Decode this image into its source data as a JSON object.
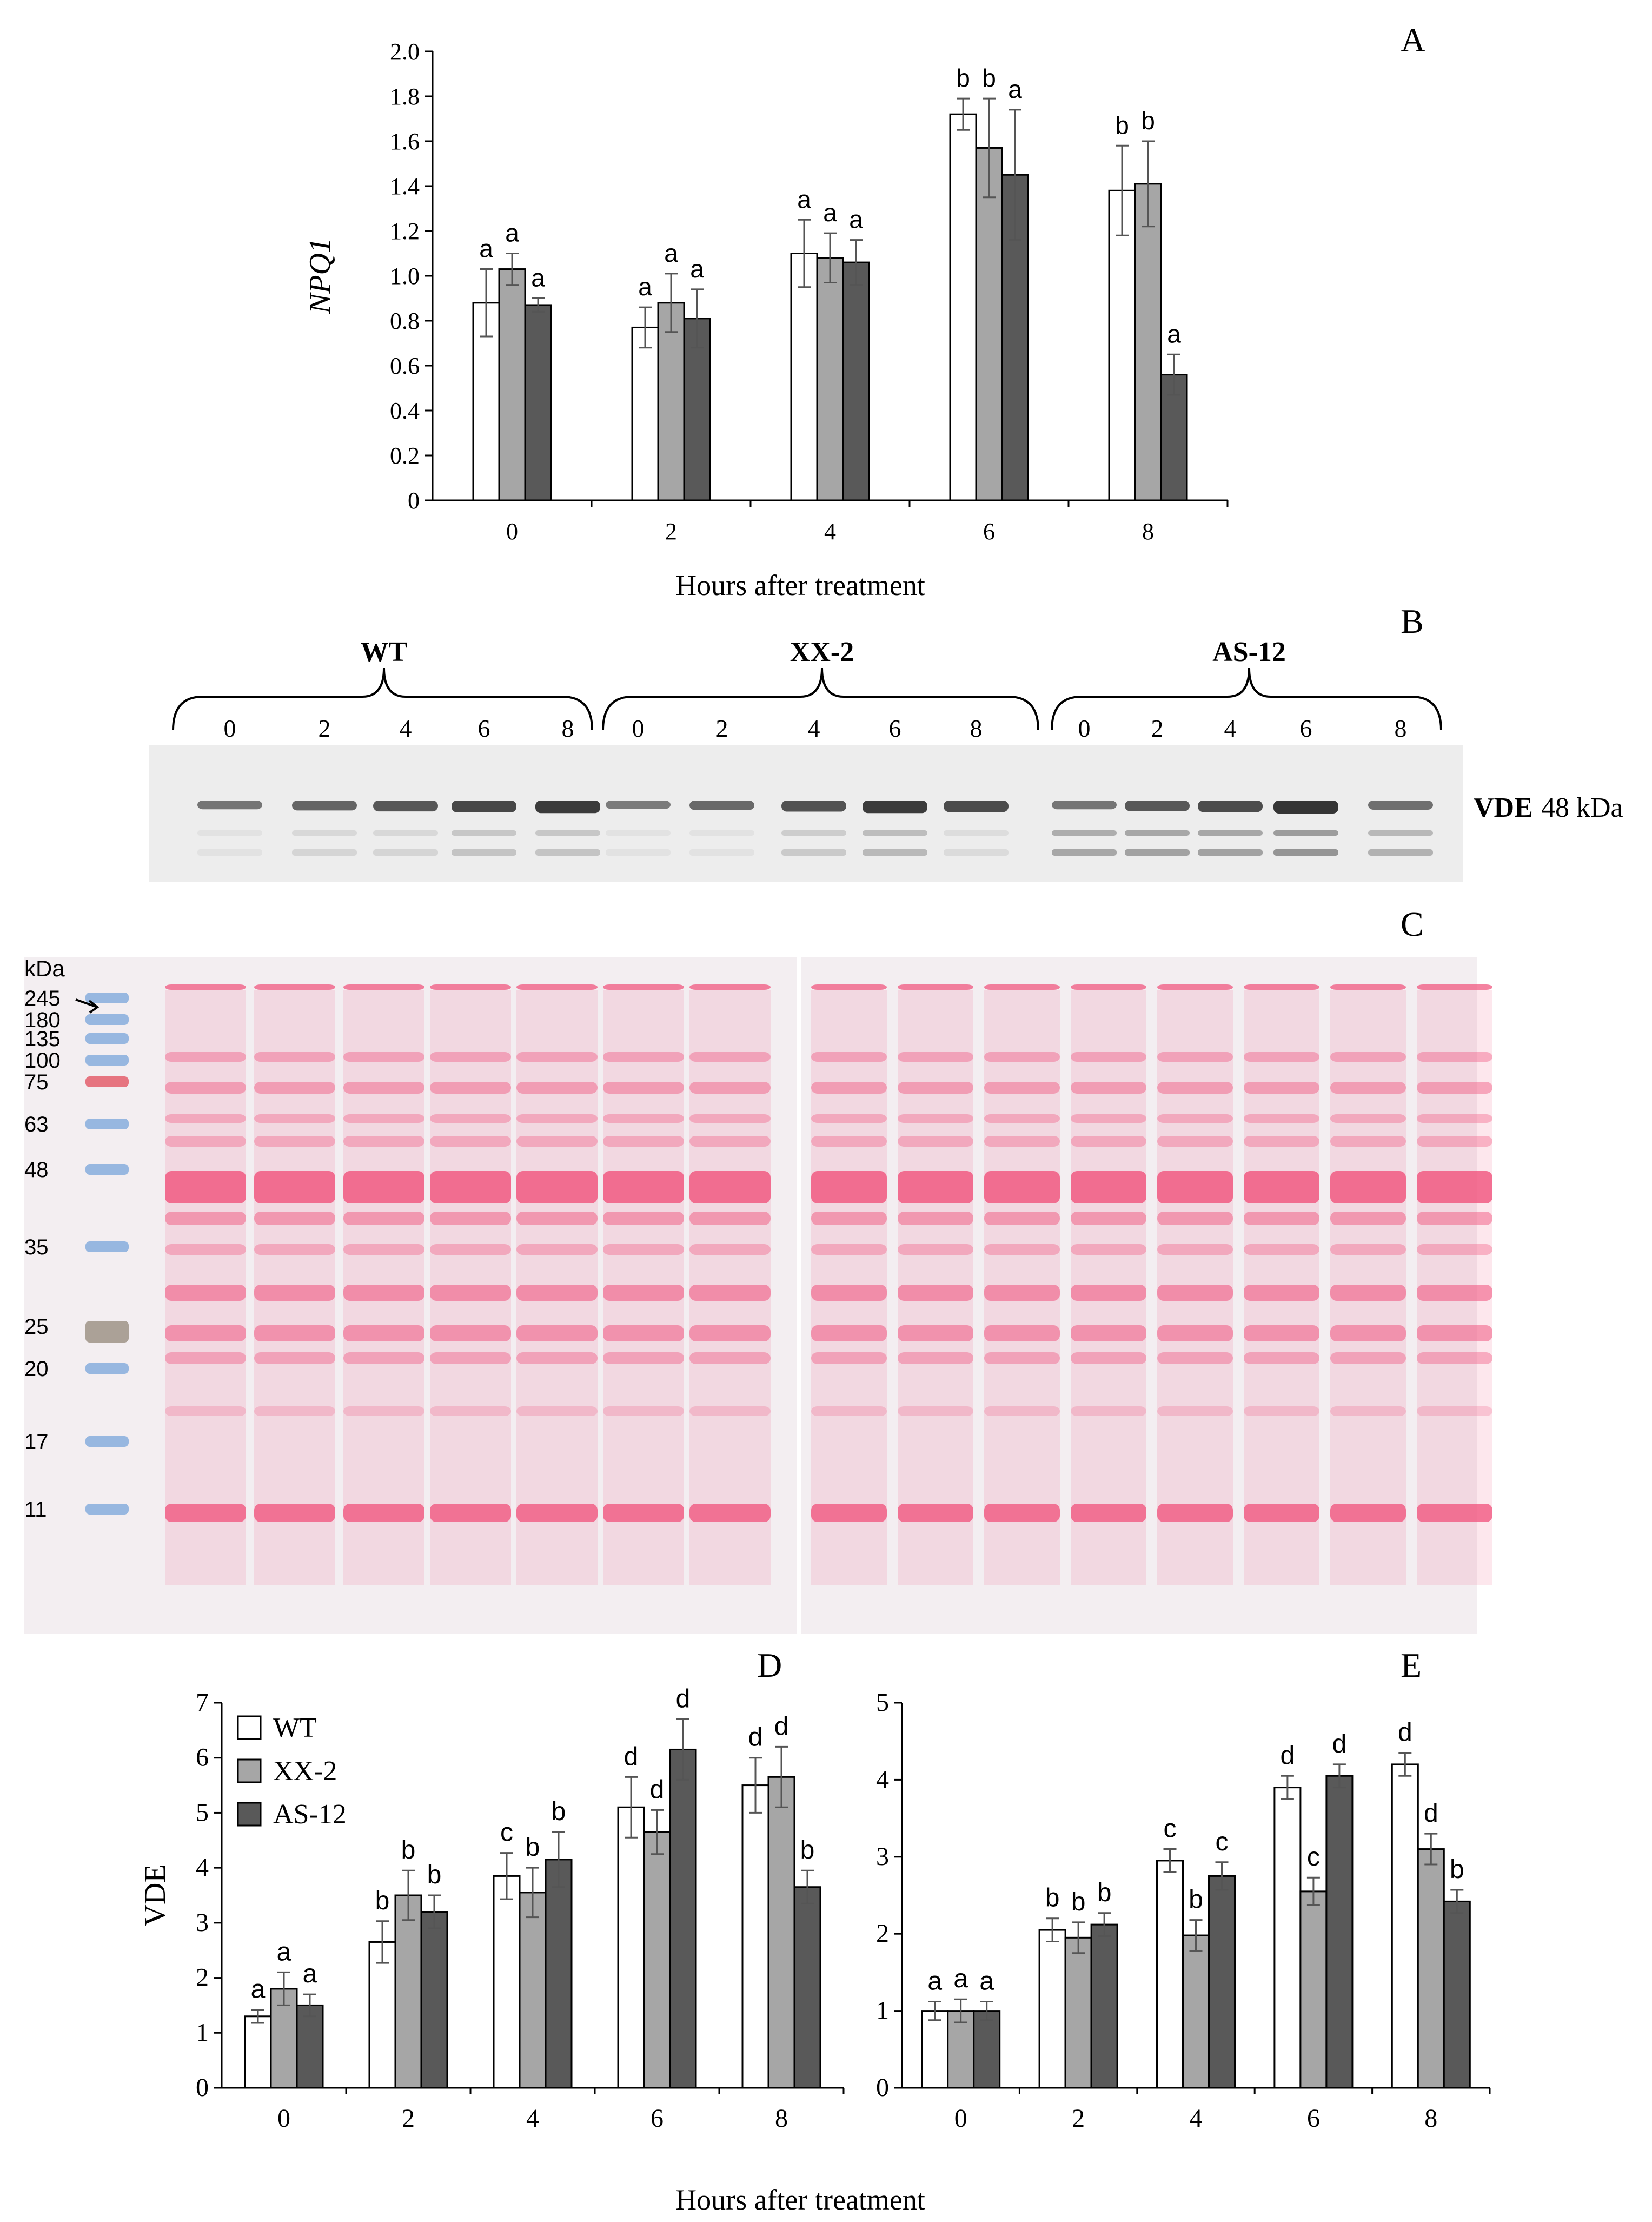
{
  "colors": {
    "wt": "#ffffff",
    "xx2": "#a6a6a6",
    "as12": "#595959",
    "bar_stroke": "#000000",
    "err": "#555555",
    "blot_bg": "#ededed",
    "band": "#2b2b2b",
    "gel_bg": "#f3eef1",
    "ponceau": "#f0527c",
    "ladder_blue": "#6f9fd8",
    "ladder_red": "#e04050",
    "ladder_brown": "#8c8070"
  },
  "panels": {
    "A": "A",
    "B": "B",
    "C": "C",
    "D": "D",
    "E": "E"
  },
  "x_title": "Hours after treatment",
  "blot": {
    "groups": [
      "WT",
      "XX-2",
      "AS-12"
    ],
    "lanes": [
      "0",
      "2",
      "4",
      "6",
      "8",
      "0",
      "2",
      "4",
      "6",
      "8",
      "0",
      "2",
      "4",
      "6",
      "8"
    ],
    "band_label": "VDE",
    "band_kda": "48 kDa",
    "band_intensity": [
      0.45,
      0.6,
      0.72,
      0.85,
      0.95,
      0.4,
      0.55,
      0.75,
      0.95,
      0.8,
      0.45,
      0.7,
      0.8,
      1.0,
      0.5
    ],
    "lower_bands": [
      0.1,
      0.2,
      0.2,
      0.35,
      0.35,
      0.1,
      0.1,
      0.3,
      0.45,
      0.15,
      0.6,
      0.65,
      0.65,
      0.75,
      0.5
    ]
  },
  "gel": {
    "kda_label": "kDa",
    "markers": [
      "245",
      "180",
      "135",
      "100",
      "75",
      "63",
      "48",
      "35",
      "25",
      "20",
      "17",
      "11"
    ]
  },
  "chart_data": [
    {
      "id": "A",
      "type": "bar",
      "categories": [
        "0",
        "2",
        "4",
        "6",
        "8"
      ],
      "ylabel": "NPQ1",
      "xlabel": "Hours after treatment",
      "ylim": [
        0,
        2.0
      ],
      "yticks": [
        "0",
        "0.2",
        "0.4",
        "0.6",
        "0.8",
        "1.0",
        "1.2",
        "1.4",
        "1.6",
        "1.8",
        "2.0"
      ],
      "series": [
        {
          "values": [
            0.88,
            0.77,
            1.1,
            1.72,
            1.38
          ],
          "err": [
            0.15,
            0.09,
            0.15,
            0.07,
            0.2
          ],
          "letters": [
            "a",
            "a",
            "a",
            "b",
            "b"
          ]
        },
        {
          "values": [
            1.03,
            0.88,
            1.08,
            1.57,
            1.41
          ],
          "err": [
            0.07,
            0.13,
            0.11,
            0.22,
            0.19
          ],
          "letters": [
            "a",
            "a",
            "a",
            "b",
            "b"
          ]
        },
        {
          "values": [
            0.87,
            0.81,
            1.06,
            1.45,
            0.56
          ],
          "err": [
            0.03,
            0.13,
            0.1,
            0.29,
            0.09
          ],
          "letters": [
            "a",
            "a",
            "a",
            "a",
            "a"
          ]
        }
      ]
    },
    {
      "id": "D",
      "type": "bar",
      "categories": [
        "0",
        "2",
        "4",
        "6",
        "8"
      ],
      "ylabel": "VDE",
      "ylim": [
        0,
        7
      ],
      "yticks": [
        "0",
        "1",
        "2",
        "3",
        "4",
        "5",
        "6",
        "7"
      ],
      "legend": {
        "position": "top-left",
        "entries": [
          "WT",
          "XX-2",
          "AS-12"
        ]
      },
      "series": [
        {
          "name": "WT",
          "values": [
            1.3,
            2.65,
            3.85,
            5.1,
            5.5
          ],
          "err": [
            0.12,
            0.38,
            0.42,
            0.55,
            0.5
          ],
          "letters": [
            "a",
            "b",
            "c",
            "d",
            "d"
          ]
        },
        {
          "name": "XX-2",
          "values": [
            1.8,
            3.5,
            3.55,
            4.65,
            5.65
          ],
          "err": [
            0.3,
            0.45,
            0.45,
            0.4,
            0.55
          ],
          "letters": [
            "a",
            "b",
            "b",
            "d",
            "d"
          ]
        },
        {
          "name": "AS-12",
          "values": [
            1.5,
            3.2,
            4.15,
            6.15,
            3.65
          ],
          "err": [
            0.2,
            0.3,
            0.5,
            0.55,
            0.3
          ],
          "letters": [
            "a",
            "b",
            "b",
            "d",
            "b"
          ]
        }
      ]
    },
    {
      "id": "E",
      "type": "bar",
      "categories": [
        "0",
        "2",
        "4",
        "6",
        "8"
      ],
      "ylim": [
        0,
        5
      ],
      "yticks": [
        "0",
        "1",
        "2",
        "3",
        "4",
        "5"
      ],
      "series": [
        {
          "values": [
            1.0,
            2.05,
            2.95,
            3.9,
            4.2
          ],
          "err": [
            0.12,
            0.15,
            0.15,
            0.15,
            0.15
          ],
          "letters": [
            "a",
            "b",
            "c",
            "d",
            "d"
          ]
        },
        {
          "values": [
            1.0,
            1.95,
            1.98,
            2.55,
            3.1
          ],
          "err": [
            0.15,
            0.2,
            0.2,
            0.18,
            0.2
          ],
          "letters": [
            "a",
            "b",
            "b",
            "c",
            "d"
          ]
        },
        {
          "values": [
            1.0,
            2.12,
            2.75,
            4.05,
            2.42
          ],
          "err": [
            0.12,
            0.15,
            0.18,
            0.15,
            0.15
          ],
          "letters": [
            "a",
            "b",
            "c",
            "d",
            "b"
          ]
        }
      ]
    }
  ]
}
